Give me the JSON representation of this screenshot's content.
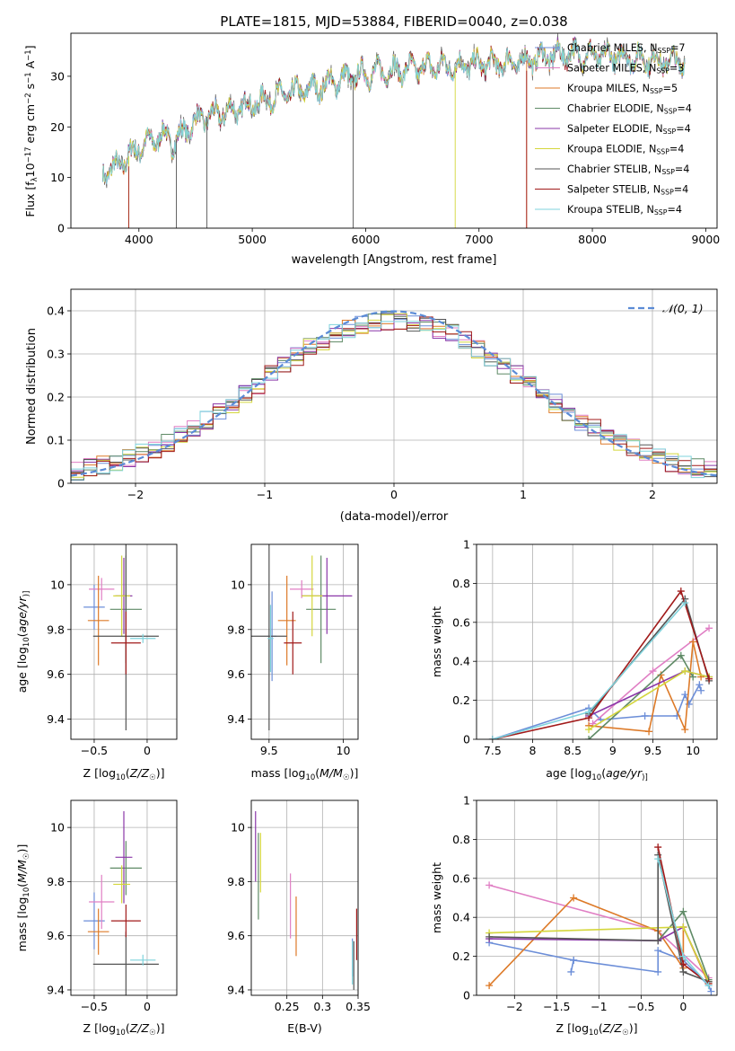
{
  "colors": [
    "#6c8ed8",
    "#e07fc4",
    "#dd7a28",
    "#5f8a66",
    "#8a37a8",
    "#d4d63c",
    "#555555",
    "#a11a1a",
    "#7fd3dc"
  ],
  "chart_data": [
    {
      "type": "line",
      "title": "PLATE=1815, MJD=53884, FIBERID=0040, z=0.038",
      "xlabel": "wavelength [Angstrom, rest frame]",
      "ylabel_parts": [
        "Flux [f",
        "λ",
        "10",
        "−17",
        " erg cm",
        "−2",
        " s",
        "−1",
        " A",
        "−1",
        "]"
      ],
      "xlim": [
        3400,
        9100
      ],
      "ylim": [
        0,
        38.5
      ],
      "x_ticks": [
        4000,
        5000,
        6000,
        7000,
        8000,
        9000
      ],
      "y_ticks": [
        0,
        10,
        20,
        30
      ],
      "grid": false,
      "legend_position": "top-right",
      "legend_entries": [
        {
          "text": "Chabrier MILES, N",
          "sub": "SSP",
          "tail": "=7"
        },
        {
          "text": "Salpeter MILES, N",
          "sub": "SSP",
          "tail": "=3"
        },
        {
          "text": "Kroupa MILES, N",
          "sub": "SSP",
          "tail": "=5"
        },
        {
          "text": "Chabrier ELODIE, N",
          "sub": "SSP",
          "tail": "=4"
        },
        {
          "text": "Salpeter ELODIE, N",
          "sub": "SSP",
          "tail": "=4"
        },
        {
          "text": "Kroupa ELODIE, N",
          "sub": "SSP",
          "tail": "=4"
        },
        {
          "text": "Chabrier STELIB, N",
          "sub": "SSP",
          "tail": "=4"
        },
        {
          "text": "Salpeter STELIB, N",
          "sub": "SSP",
          "tail": "=4"
        },
        {
          "text": "Kroupa STELIB, N",
          "sub": "SSP",
          "tail": "=4"
        }
      ],
      "spectrum_continuum": {
        "x": [
          3680,
          3800,
          3900,
          4000,
          4100,
          4200,
          4300,
          4400,
          4500,
          4600,
          4800,
          5000,
          5200,
          5400,
          5600,
          5800,
          6000,
          6200,
          6400,
          6600,
          6800,
          7000,
          7200,
          7400,
          7600,
          7800,
          8000,
          8200,
          8400,
          8600,
          8800
        ],
        "y": [
          11,
          12,
          14,
          16,
          17,
          18.5,
          17,
          19,
          21,
          22,
          23,
          24.5,
          26,
          27,
          28,
          29.5,
          30.5,
          31,
          31.5,
          32,
          32,
          32.5,
          32.5,
          33,
          34,
          34.5,
          34,
          34,
          33.5,
          33,
          33
        ]
      },
      "spectrum_spikes_x": [
        3910,
        4330,
        4600,
        5890,
        6790,
        7420
      ],
      "spectrum_spike_ends_at_x": [
        7420,
        7420,
        7420
      ],
      "spectrum_end_x": [
        8820,
        8820,
        8820,
        8820,
        8820,
        8820,
        8820,
        8820,
        8820
      ]
    },
    {
      "type": "line",
      "xlabel": "(data-model)/error",
      "ylabel": "Normed distribution",
      "xlim": [
        -2.5,
        2.5
      ],
      "ylim": [
        0,
        0.45
      ],
      "x_ticks": [
        -2,
        -1,
        0,
        1,
        2
      ],
      "y_ticks": [
        0.0,
        0.1,
        0.2,
        0.3,
        0.4
      ],
      "grid": true,
      "legend_position": "top-right",
      "legend_entries": [
        {
          "text": "𝒩(0, 1)"
        }
      ],
      "gaussian": {
        "mu": 0,
        "sigma": 1
      },
      "hist_bin_width": 0.1
    },
    {
      "type": "scatter",
      "xlabel": "Z [log10(Z/Z☉)]",
      "xlabel_parts": [
        "Z [log",
        "10",
        "(",
        "Z/Z",
        "☉",
        ")]"
      ],
      "ylabel": "age  [log10(age/yr)]",
      "ylabel_parts": [
        "age  [log",
        "10",
        "(",
        "age/yr",
        ")]"
      ],
      "xlim": [
        -0.72,
        0.28
      ],
      "ylim": [
        9.31,
        10.18
      ],
      "x_ticks": [
        -0.5,
        0.0
      ],
      "y_ticks": [
        9.4,
        9.6,
        9.8,
        10.0
      ],
      "grid": true,
      "points": [
        {
          "x": -0.5,
          "y": 9.9,
          "xerr": 0.1,
          "yerr": 0.1,
          "color": 0
        },
        {
          "x": -0.43,
          "y": 9.98,
          "xerr": 0.12,
          "yerr": 0.05,
          "color": 1
        },
        {
          "x": -0.46,
          "y": 9.84,
          "xerr": 0.1,
          "yerr": 0.2,
          "color": 2
        },
        {
          "x": -0.2,
          "y": 9.89,
          "xerr": 0.15,
          "yerr": 0.24,
          "color": 3
        },
        {
          "x": -0.22,
          "y": 9.95,
          "xerr": 0.08,
          "yerr": 0.17,
          "color": 4
        },
        {
          "x": -0.24,
          "y": 9.95,
          "xerr": 0.08,
          "yerr": 0.18,
          "color": 5
        },
        {
          "x": -0.2,
          "y": 9.77,
          "xerr": 0.31,
          "yerr": 0.42,
          "color": 6
        },
        {
          "x": -0.2,
          "y": 9.74,
          "xerr": 0.14,
          "yerr": 0.14,
          "color": 7
        },
        {
          "x": -0.04,
          "y": 9.76,
          "xerr": 0.12,
          "yerr": 0.02,
          "color": 8
        }
      ]
    },
    {
      "type": "scatter",
      "xlabel": "mass [log10(M/M☉)]",
      "xlabel_parts": [
        "mass [log",
        "10",
        "(",
        "M/M",
        "☉",
        ")]"
      ],
      "ylabel": "",
      "xlim": [
        9.38,
        10.1
      ],
      "ylim": [
        9.31,
        10.18
      ],
      "x_ticks": [
        9.5,
        10.0
      ],
      "y_ticks": [
        9.4,
        9.6,
        9.8,
        10.0
      ],
      "grid": true,
      "points": [
        {
          "x": 9.52,
          "y": 9.77,
          "xerr": 0.03,
          "yerr": 0.2,
          "color": 0
        },
        {
          "x": 9.72,
          "y": 9.98,
          "xerr": 0.08,
          "yerr": 0.04,
          "color": 1
        },
        {
          "x": 9.62,
          "y": 9.84,
          "xerr": 0.06,
          "yerr": 0.2,
          "color": 2
        },
        {
          "x": 9.85,
          "y": 9.89,
          "xerr": 0.1,
          "yerr": 0.24,
          "color": 3
        },
        {
          "x": 9.89,
          "y": 9.95,
          "xerr": 0.17,
          "yerr": 0.17,
          "color": 4
        },
        {
          "x": 9.79,
          "y": 9.95,
          "xerr": 0.07,
          "yerr": 0.18,
          "color": 5
        },
        {
          "x": 9.5,
          "y": 9.77,
          "xerr": 0.12,
          "yerr": 0.42,
          "color": 6
        },
        {
          "x": 9.66,
          "y": 9.74,
          "xerr": 0.06,
          "yerr": 0.14,
          "color": 7
        },
        {
          "x": 9.51,
          "y": 9.76,
          "xerr": 0.02,
          "yerr": 0.15,
          "color": 8
        }
      ]
    },
    {
      "type": "line",
      "xlabel": "age  [log10(age/yr)]",
      "xlabel_parts": [
        "age  [log",
        "10",
        "(",
        "age/yr",
        ")]"
      ],
      "ylabel": "mass weight",
      "xlim": [
        7.3,
        10.3
      ],
      "ylim": [
        0,
        1
      ],
      "x_ticks": [
        7.5,
        8.0,
        8.5,
        9.0,
        9.5,
        10.0
      ],
      "y_ticks": [
        0.0,
        0.2,
        0.4,
        0.6,
        0.8,
        1.0
      ],
      "grid": true,
      "series": [
        {
          "color": 0,
          "points": [
            [
              7.5,
              0.0
            ],
            [
              8.7,
              0.16
            ],
            [
              8.85,
              0.1
            ],
            [
              9.4,
              0.12
            ],
            [
              9.8,
              0.12
            ],
            [
              9.9,
              0.23
            ],
            [
              9.95,
              0.18
            ],
            [
              10.08,
              0.28
            ],
            [
              10.1,
              0.25
            ]
          ]
        },
        {
          "color": 1,
          "points": [
            [
              8.75,
              0.08
            ],
            [
              9.5,
              0.35
            ],
            [
              10.2,
              0.57
            ]
          ]
        },
        {
          "color": 2,
          "points": [
            [
              8.7,
              0.07
            ],
            [
              9.45,
              0.04
            ],
            [
              9.6,
              0.33
            ],
            [
              9.9,
              0.05
            ],
            [
              10.0,
              0.5
            ],
            [
              10.1,
              0.32
            ]
          ]
        },
        {
          "color": 3,
          "points": [
            [
              8.7,
              0.0
            ],
            [
              9.85,
              0.43
            ],
            [
              10.0,
              0.32
            ]
          ]
        },
        {
          "color": 4,
          "points": [
            [
              8.7,
              0.12
            ],
            [
              9.9,
              0.35
            ],
            [
              10.2,
              0.32
            ]
          ]
        },
        {
          "color": 5,
          "points": [
            [
              8.7,
              0.05
            ],
            [
              9.9,
              0.35
            ],
            [
              10.2,
              0.32
            ]
          ]
        },
        {
          "color": 6,
          "points": [
            [
              8.7,
              0.13
            ],
            [
              9.9,
              0.72
            ],
            [
              10.2,
              0.3
            ]
          ]
        },
        {
          "color": 7,
          "points": [
            [
              7.5,
              0.0
            ],
            [
              8.7,
              0.11
            ],
            [
              9.85,
              0.76
            ],
            [
              10.2,
              0.31
            ]
          ]
        },
        {
          "color": 8,
          "points": [
            [
              7.5,
              0.0
            ],
            [
              8.7,
              0.14
            ],
            [
              9.9,
              0.7
            ]
          ]
        }
      ]
    },
    {
      "type": "scatter",
      "xlabel": "Z [log10(Z/Z☉)]",
      "xlabel_parts": [
        "Z [log",
        "10",
        "(",
        "Z/Z",
        "☉",
        ")]"
      ],
      "ylabel": "mass [log10(M/M☉)]",
      "ylabel_parts": [
        "mass [log",
        "10",
        "(",
        "M/M",
        "☉",
        ")]"
      ],
      "xlim": [
        -0.72,
        0.28
      ],
      "ylim": [
        9.38,
        10.1
      ],
      "x_ticks": [
        -0.5,
        0.0
      ],
      "y_ticks": [
        9.4,
        9.6,
        9.8,
        10.0
      ],
      "grid": true,
      "points": [
        {
          "x": -0.5,
          "y": 9.655,
          "xerr": 0.1,
          "yerr": 0.105,
          "color": 0
        },
        {
          "x": -0.43,
          "y": 9.725,
          "xerr": 0.12,
          "yerr": 0.1,
          "color": 1
        },
        {
          "x": -0.46,
          "y": 9.615,
          "xerr": 0.1,
          "yerr": 0.085,
          "color": 2
        },
        {
          "x": -0.2,
          "y": 9.85,
          "xerr": 0.15,
          "yerr": 0.1,
          "color": 3
        },
        {
          "x": -0.22,
          "y": 9.89,
          "xerr": 0.08,
          "yerr": 0.17,
          "color": 4
        },
        {
          "x": -0.24,
          "y": 9.79,
          "xerr": 0.08,
          "yerr": 0.07,
          "color": 5
        },
        {
          "x": -0.2,
          "y": 9.495,
          "xerr": 0.31,
          "yerr": 0.12,
          "color": 6
        },
        {
          "x": -0.2,
          "y": 9.655,
          "xerr": 0.14,
          "yerr": 0.06,
          "color": 7
        },
        {
          "x": -0.04,
          "y": 9.51,
          "xerr": 0.12,
          "yerr": 0.02,
          "color": 8
        }
      ]
    },
    {
      "type": "scatter",
      "xlabel": "E(B-V)",
      "ylabel": "",
      "xlim": [
        0.2,
        0.35
      ],
      "ylim": [
        9.38,
        10.1
      ],
      "x_ticks": [
        0.25,
        0.3,
        0.35
      ],
      "y_ticks": [
        9.4,
        9.6,
        9.8,
        10.0
      ],
      "grid": true,
      "points": [
        {
          "x": 0.342,
          "y": 9.52,
          "xerr": 0.0,
          "yerr": 0.07,
          "color": 0
        },
        {
          "x": 0.255,
          "y": 9.71,
          "xerr": 0.0,
          "yerr": 0.12,
          "color": 1
        },
        {
          "x": 0.263,
          "y": 9.635,
          "xerr": 0.0,
          "yerr": 0.11,
          "color": 2
        },
        {
          "x": 0.21,
          "y": 9.82,
          "xerr": 0.0,
          "yerr": 0.16,
          "color": 3
        },
        {
          "x": 0.206,
          "y": 9.93,
          "xerr": 0.0,
          "yerr": 0.13,
          "color": 4
        },
        {
          "x": 0.213,
          "y": 9.87,
          "xerr": 0.0,
          "yerr": 0.11,
          "color": 5
        },
        {
          "x": 0.344,
          "y": 9.49,
          "xerr": 0.0,
          "yerr": 0.09,
          "color": 6
        },
        {
          "x": 0.348,
          "y": 9.605,
          "xerr": 0.0,
          "yerr": 0.095,
          "color": 7
        },
        {
          "x": 0.342,
          "y": 9.5,
          "xerr": 0.0,
          "yerr": 0.08,
          "color": 8
        }
      ]
    },
    {
      "type": "line",
      "xlabel": "Z [log10(Z/Z☉)]",
      "xlabel_parts": [
        "Z [log",
        "10",
        "(",
        "Z/Z",
        "☉",
        ")]"
      ],
      "ylabel": "mass weight",
      "xlim": [
        -2.45,
        0.4
      ],
      "ylim": [
        0,
        1
      ],
      "x_ticks": [
        -2.0,
        -1.5,
        -1.0,
        -0.5,
        0.0
      ],
      "y_ticks": [
        0.0,
        0.2,
        0.4,
        0.6,
        0.8,
        1.0
      ],
      "grid": true,
      "series": [
        {
          "color": 0,
          "points": [
            [
              -2.3,
              0.27
            ],
            [
              -1.3,
              0.18
            ],
            [
              -1.33,
              0.12
            ],
            [
              -1.3,
              0.18
            ],
            [
              -0.3,
              0.12
            ],
            [
              -0.3,
              0.23
            ],
            [
              0.0,
              0.18
            ],
            [
              0.3,
              0.05
            ],
            [
              0.33,
              0.02
            ]
          ]
        },
        {
          "color": 1,
          "points": [
            [
              -2.3,
              0.565
            ],
            [
              -0.3,
              0.33
            ],
            [
              0.3,
              0.09
            ]
          ]
        },
        {
          "color": 2,
          "points": [
            [
              -2.3,
              0.05
            ],
            [
              -1.3,
              0.5
            ],
            [
              -0.3,
              0.33
            ],
            [
              0.0,
              0.14
            ],
            [
              0.0,
              0.35
            ],
            [
              0.3,
              0.06
            ]
          ]
        },
        {
          "color": 3,
          "points": [
            [
              -0.3,
              0.28
            ],
            [
              0.0,
              0.43
            ],
            [
              0.3,
              0.08
            ]
          ]
        },
        {
          "color": 4,
          "points": [
            [
              -2.3,
              0.29
            ],
            [
              -0.3,
              0.28
            ],
            [
              0.0,
              0.35
            ],
            [
              0.3,
              0.07
            ]
          ]
        },
        {
          "color": 5,
          "points": [
            [
              -2.3,
              0.32
            ],
            [
              0.0,
              0.35
            ],
            [
              0.3,
              0.07
            ]
          ]
        },
        {
          "color": 6,
          "points": [
            [
              -2.3,
              0.3
            ],
            [
              -0.3,
              0.28
            ],
            [
              -0.3,
              0.72
            ],
            [
              0.0,
              0.12
            ],
            [
              0.3,
              0.07
            ]
          ]
        },
        {
          "color": 7,
          "points": [
            [
              -0.3,
              0.76
            ],
            [
              0.0,
              0.16
            ],
            [
              0.3,
              0.06
            ]
          ]
        },
        {
          "color": 8,
          "points": [
            [
              -0.3,
              0.7
            ],
            [
              0.0,
              0.2
            ],
            [
              0.3,
              0.05
            ]
          ]
        }
      ]
    }
  ]
}
